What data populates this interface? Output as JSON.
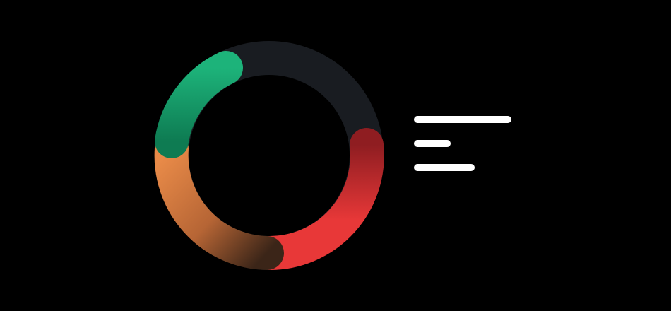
{
  "ring": {
    "track_color": "#191c21",
    "segments": [
      {
        "name": "green",
        "fraction": 0.21,
        "color_start": "#1db37a",
        "color_end": "#0e7b52"
      },
      {
        "name": "orange",
        "fraction": 0.3,
        "color_start": "#e88a48",
        "color_end": "#3b2518"
      },
      {
        "name": "red",
        "fraction": 0.24,
        "color_start": "#e83838",
        "color_end": "#8f1d21"
      }
    ]
  },
  "lines": {
    "color": "#ffffff"
  }
}
